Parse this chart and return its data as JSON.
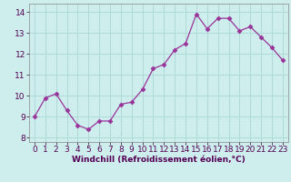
{
  "x": [
    0,
    1,
    2,
    3,
    4,
    5,
    6,
    7,
    8,
    9,
    10,
    11,
    12,
    13,
    14,
    15,
    16,
    17,
    18,
    19,
    20,
    21,
    22,
    23
  ],
  "y": [
    9.0,
    9.9,
    10.1,
    9.3,
    8.6,
    8.4,
    8.8,
    8.8,
    9.6,
    9.7,
    10.3,
    11.3,
    11.5,
    12.2,
    12.5,
    13.9,
    13.2,
    13.7,
    13.7,
    13.1,
    13.3,
    12.8,
    12.3,
    11.7
  ],
  "line_color": "#993399",
  "marker": "D",
  "markersize": 2.5,
  "linewidth": 0.9,
  "bg_color": "#cdeeed",
  "grid_color": "#b0dada",
  "xlabel": "Windchill (Refroidissement éolien,°C)",
  "xlabel_fontsize": 6.5,
  "tick_fontsize": 6.5,
  "xlim": [
    -0.5,
    23.5
  ],
  "ylim": [
    7.8,
    14.4
  ],
  "yticks": [
    8,
    9,
    10,
    11,
    12,
    13,
    14
  ],
  "xticks": [
    0,
    1,
    2,
    3,
    4,
    5,
    6,
    7,
    8,
    9,
    10,
    11,
    12,
    13,
    14,
    15,
    16,
    17,
    18,
    19,
    20,
    21,
    22,
    23
  ]
}
